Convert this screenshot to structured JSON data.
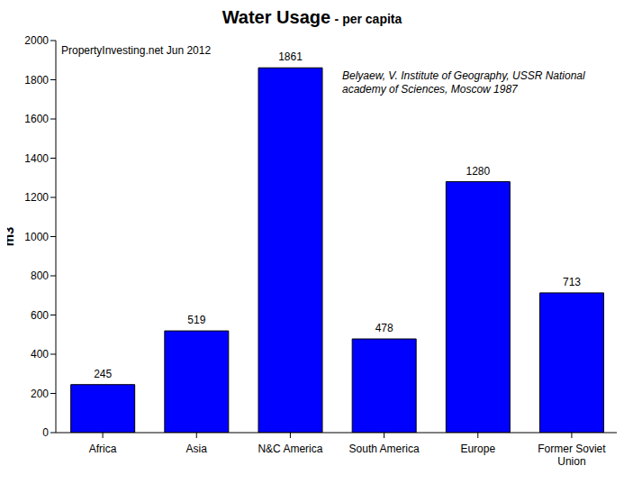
{
  "chart_data": {
    "type": "bar",
    "title": "Water Usage",
    "subtitle": "- per capita",
    "y_label": "m3",
    "annotations": [
      "PropertyInvesting.net Jun 2012",
      "Belyaew, V. Institute of Geography, USSR National academy of Sciences, Moscow 1987"
    ],
    "categories": [
      "Africa",
      "Asia",
      "N&C America",
      "South America",
      "Europe",
      "Former Soviet Union"
    ],
    "values": [
      245,
      519,
      1861,
      478,
      1280,
      713
    ],
    "color": "#0000ff",
    "ylim": [
      0,
      2000
    ],
    "yticks": [
      0,
      200,
      400,
      600,
      800,
      1000,
      1200,
      1400,
      1600,
      1800,
      2000
    ],
    "grid": false,
    "data_labels": true
  }
}
